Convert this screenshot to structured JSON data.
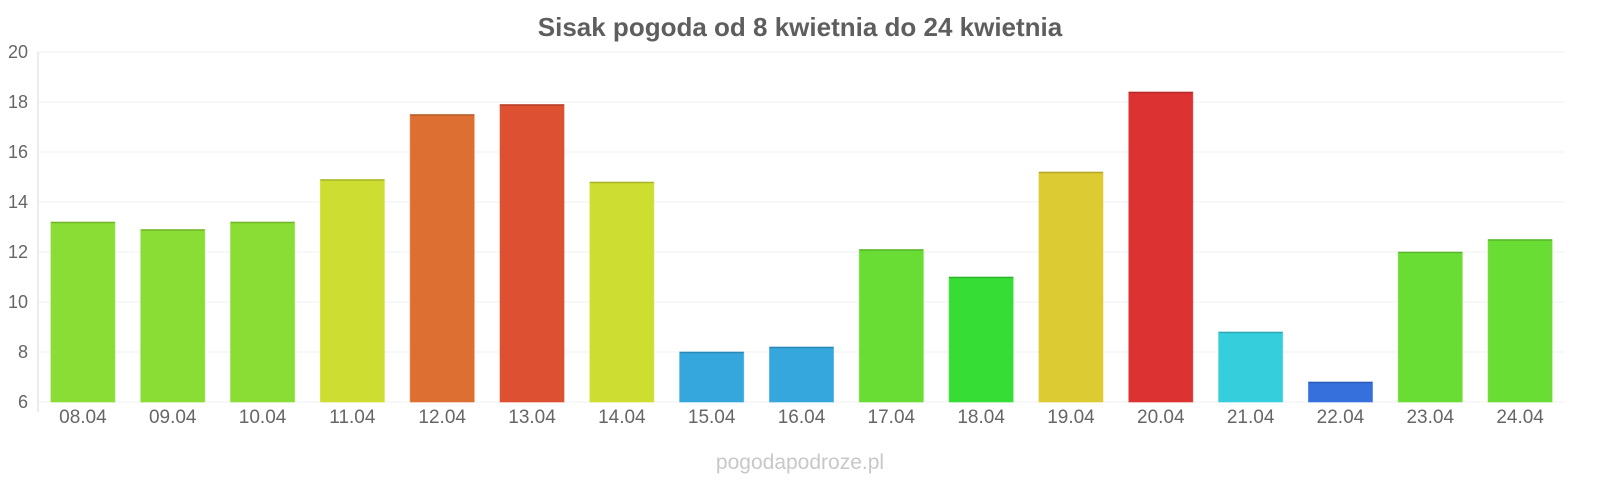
{
  "chart_data": {
    "type": "bar",
    "title": "Sisak pogoda od 8 kwietnia do 24 kwietnia",
    "xlabel": "",
    "ylabel": "",
    "ylim": [
      6,
      20
    ],
    "yticks": [
      6,
      8,
      10,
      12,
      14,
      16,
      18,
      20
    ],
    "grid": true,
    "categories": [
      "08.04",
      "09.04",
      "10.04",
      "11.04",
      "12.04",
      "13.04",
      "14.04",
      "15.04",
      "16.04",
      "17.04",
      "18.04",
      "19.04",
      "20.04",
      "21.04",
      "22.04",
      "23.04",
      "24.04"
    ],
    "values": [
      13.2,
      12.9,
      13.2,
      14.9,
      17.5,
      17.9,
      14.8,
      8.0,
      8.2,
      12.1,
      11.0,
      15.2,
      18.4,
      8.8,
      6.8,
      12.0,
      12.5
    ],
    "colors": [
      "#8add35",
      "#8add35",
      "#8add35",
      "#cedd32",
      "#de6f32",
      "#de5032",
      "#cedd32",
      "#35a7dd",
      "#35a7dd",
      "#6add35",
      "#35dd35",
      "#dccb32",
      "#dd3232",
      "#35cedd",
      "#3570dd",
      "#6add35",
      "#6add35"
    ]
  },
  "watermark": "pogodapodroze.pl"
}
